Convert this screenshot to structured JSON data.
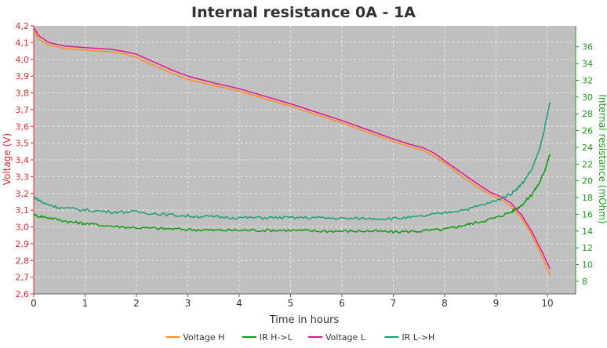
{
  "chart_data": {
    "type": "line",
    "title": "Internal resistance  0A - 1A",
    "xlabel": "Time in hours",
    "ylabel_left": "Voltage (V)",
    "ylabel_right": "Internal resistance (mOhm)",
    "xlim": [
      0,
      10.55
    ],
    "ylim_left": [
      2.6,
      4.2
    ],
    "ylim_right": [
      6.5,
      38.5
    ],
    "x_ticks": [
      "0",
      "1",
      "2",
      "3",
      "4",
      "5",
      "6",
      "7",
      "8",
      "9",
      "10"
    ],
    "y_left_ticks": [
      "2,6",
      "2,7",
      "2,8",
      "2,9",
      "3,0",
      "3,1",
      "3,2",
      "3,3",
      "3,4",
      "3,5",
      "3,6",
      "3,7",
      "3,8",
      "3,9",
      "4,0",
      "4,1",
      "4,2"
    ],
    "y_right_ticks": [
      "8",
      "10",
      "12",
      "14",
      "16",
      "18",
      "20",
      "22",
      "24",
      "26",
      "28",
      "30",
      "32",
      "34",
      "36"
    ],
    "grid": true,
    "legend_position": "bottom",
    "colors": {
      "plot_background": "#c0c0c0",
      "grid": "#e6e6e6",
      "left_axis": "#e8262d",
      "right_axis": "#1a9a1a"
    },
    "series": [
      {
        "name": "Voltage H",
        "axis": "left",
        "color": "#ff8c2a",
        "x": [
          0,
          0.1,
          0.3,
          0.6,
          1.0,
          1.5,
          1.8,
          2.0,
          2.3,
          2.7,
          3.0,
          3.5,
          4.0,
          4.5,
          5.0,
          5.5,
          6.0,
          6.5,
          7.0,
          7.3,
          7.6,
          7.8,
          8.0,
          8.3,
          8.6,
          8.9,
          9.1,
          9.3,
          9.5,
          9.7,
          9.9,
          10.05
        ],
        "y": [
          4.17,
          4.12,
          4.085,
          4.065,
          4.055,
          4.045,
          4.03,
          4.01,
          3.97,
          3.915,
          3.88,
          3.845,
          3.81,
          3.765,
          3.72,
          3.67,
          3.62,
          3.565,
          3.51,
          3.48,
          3.455,
          3.42,
          3.38,
          3.31,
          3.245,
          3.19,
          3.165,
          3.12,
          3.05,
          2.95,
          2.82,
          2.71
        ]
      },
      {
        "name": "IR H->L",
        "axis": "right",
        "color": "#0e9b0e",
        "x": [
          0,
          0.3,
          0.7,
          1.0,
          1.5,
          2.0,
          2.5,
          3.0,
          3.5,
          4.0,
          4.5,
          5.0,
          5.5,
          6.0,
          6.5,
          7.0,
          7.5,
          8.0,
          8.3,
          8.6,
          9.0,
          9.3,
          9.5,
          9.7,
          9.85,
          9.95,
          10.05
        ],
        "y": [
          15.9,
          15.6,
          15.1,
          14.9,
          14.6,
          14.4,
          14.3,
          14.2,
          14.1,
          14.1,
          14.1,
          14.1,
          14.0,
          14.0,
          14.0,
          13.9,
          14.0,
          14.2,
          14.6,
          15.0,
          15.6,
          16.3,
          17.1,
          18.4,
          19.8,
          21.3,
          23.2
        ]
      },
      {
        "name": "Voltage L",
        "axis": "left",
        "color": "#e0168f",
        "x": [
          0,
          0.1,
          0.3,
          0.6,
          1.0,
          1.5,
          1.8,
          2.0,
          2.3,
          2.7,
          3.0,
          3.5,
          4.0,
          4.5,
          5.0,
          5.5,
          6.0,
          6.5,
          7.0,
          7.3,
          7.6,
          7.8,
          8.0,
          8.3,
          8.6,
          8.9,
          9.1,
          9.3,
          9.5,
          9.7,
          9.9,
          10.05
        ],
        "y": [
          4.19,
          4.14,
          4.1,
          4.08,
          4.07,
          4.06,
          4.045,
          4.03,
          3.99,
          3.935,
          3.9,
          3.86,
          3.825,
          3.78,
          3.735,
          3.685,
          3.635,
          3.58,
          3.525,
          3.495,
          3.47,
          3.44,
          3.395,
          3.33,
          3.265,
          3.205,
          3.18,
          3.14,
          3.07,
          2.97,
          2.85,
          2.75
        ]
      },
      {
        "name": "IR L->H",
        "axis": "right",
        "color": "#1c9e7c",
        "x": [
          0,
          0.2,
          0.5,
          1.0,
          1.5,
          2.0,
          2.5,
          3.0,
          3.5,
          4.0,
          4.5,
          5.0,
          5.5,
          6.0,
          6.5,
          7.0,
          7.5,
          8.0,
          8.5,
          9.0,
          9.3,
          9.5,
          9.7,
          9.85,
          9.95,
          10.05
        ],
        "y": [
          18.1,
          17.3,
          16.8,
          16.5,
          16.3,
          16.3,
          16.0,
          15.8,
          15.7,
          15.6,
          15.6,
          15.6,
          15.6,
          15.5,
          15.5,
          15.5,
          15.7,
          16.2,
          16.7,
          17.6,
          18.5,
          19.6,
          21.4,
          23.8,
          26.4,
          29.4
        ]
      }
    ]
  }
}
